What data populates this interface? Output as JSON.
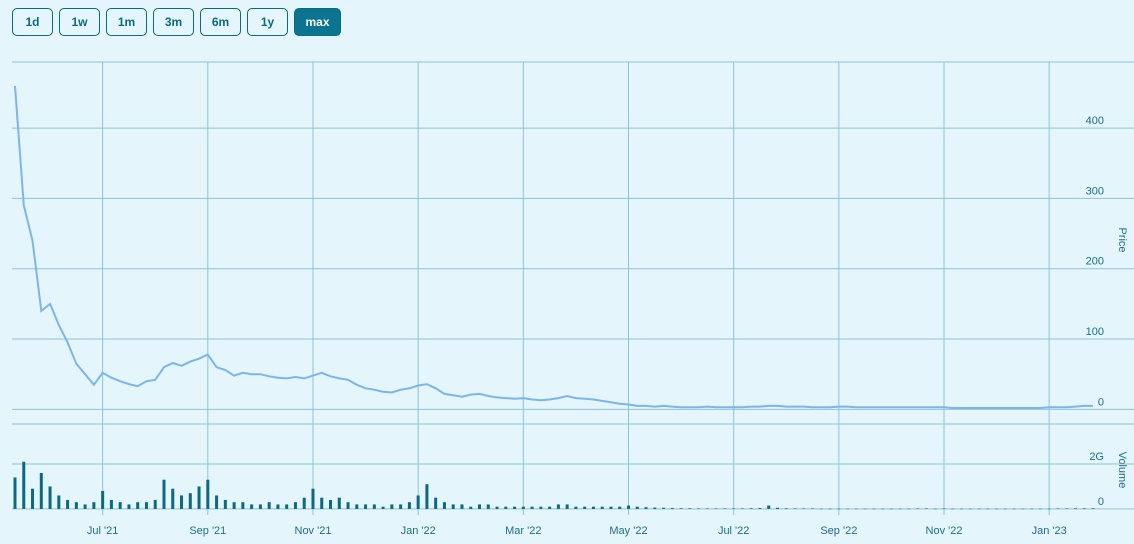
{
  "range_buttons": [
    "1d",
    "1w",
    "1m",
    "3m",
    "6m",
    "1y",
    "max"
  ],
  "selected_button": 6,
  "chart_data": [
    {
      "type": "line",
      "ylabel": "Price",
      "color": "#7cb5ec",
      "ylim": [
        -8,
        494
      ],
      "yticks": [
        0,
        100,
        200,
        300,
        400
      ],
      "grid": true,
      "values": [
        460,
        290,
        240,
        140,
        150,
        120,
        95,
        65,
        50,
        35,
        52,
        45,
        40,
        36,
        33,
        40,
        42,
        60,
        66,
        62,
        68,
        72,
        78,
        60,
        56,
        48,
        52,
        50,
        50,
        47,
        45,
        44,
        46,
        44,
        48,
        52,
        47,
        44,
        42,
        35,
        30,
        28,
        25,
        24,
        28,
        30,
        34,
        36,
        30,
        22,
        20,
        18,
        21,
        22,
        19,
        17,
        16,
        15,
        16,
        14,
        13,
        14,
        16,
        19,
        16,
        15,
        14,
        12,
        10,
        8,
        7,
        5,
        5,
        4,
        5,
        4,
        3,
        3,
        3,
        4,
        3,
        3,
        3,
        3,
        4,
        4,
        5,
        5,
        4,
        4,
        4,
        3,
        3,
        3,
        4,
        4,
        3,
        3,
        3,
        3,
        3,
        3,
        3,
        3,
        3,
        3,
        3,
        2,
        2,
        2,
        2,
        2,
        2,
        2,
        2,
        2,
        2,
        2,
        3,
        3,
        3,
        4,
        5,
        5
      ]
    },
    {
      "type": "bar",
      "ylabel": "Volume",
      "color": "#0b6a80",
      "ylim": [
        -270000000,
        3780000000
      ],
      "yticks": [
        0,
        {
          "value": 2000000000,
          "label": "2G"
        }
      ],
      "grid": true,
      "categories": [
        null,
        null,
        null,
        null,
        null,
        null,
        null,
        null,
        null,
        null,
        "Jul '21",
        null,
        null,
        null,
        null,
        null,
        null,
        null,
        null,
        null,
        null,
        null,
        "Sep '21",
        null,
        null,
        null,
        null,
        null,
        null,
        null,
        null,
        null,
        null,
        null,
        "Nov '21",
        null,
        null,
        null,
        null,
        null,
        null,
        null,
        null,
        null,
        null,
        null,
        "Jan '22",
        null,
        null,
        null,
        null,
        null,
        null,
        null,
        null,
        null,
        null,
        null,
        "Mar '22",
        null,
        null,
        null,
        null,
        null,
        null,
        null,
        null,
        null,
        null,
        null,
        "May '22",
        null,
        null,
        null,
        null,
        null,
        null,
        null,
        null,
        null,
        null,
        null,
        "Jul '22",
        null,
        null,
        null,
        null,
        null,
        null,
        null,
        null,
        null,
        null,
        null,
        "Sep '22",
        null,
        null,
        null,
        null,
        null,
        null,
        null,
        null,
        null,
        null,
        null,
        "Nov '22",
        null,
        null,
        null,
        null,
        null,
        null,
        null,
        null,
        null,
        null,
        null,
        "Jan '23",
        null,
        null,
        null,
        null,
        null
      ],
      "values": [
        1400000000.0,
        2100000000.0,
        900000000.0,
        1600000000.0,
        1000000000.0,
        600000000.0,
        400000000.0,
        300000000.0,
        200000000.0,
        300000000.0,
        800000000.0,
        400000000.0,
        300000000.0,
        200000000.0,
        300000000.0,
        300000000.0,
        400000000.0,
        1300000000.0,
        900000000.0,
        600000000.0,
        700000000.0,
        1000000000.0,
        1300000000.0,
        600000000.0,
        400000000.0,
        300000000.0,
        300000000.0,
        200000000.0,
        200000000.0,
        300000000.0,
        200000000.0,
        200000000.0,
        300000000.0,
        500000000.0,
        900000000.0,
        500000000.0,
        400000000.0,
        500000000.0,
        300000000.0,
        200000000.0,
        200000000.0,
        200000000.0,
        100000000.0,
        200000000.0,
        200000000.0,
        300000000.0,
        600000000.0,
        1100000000.0,
        500000000.0,
        300000000.0,
        200000000.0,
        200000000.0,
        100000000.0,
        200000000.0,
        200000000.0,
        100000000.0,
        100000000.0,
        100000000.0,
        100000000.0,
        100000000.0,
        100000000.0,
        100000000.0,
        200000000.0,
        200000000.0,
        100000000.0,
        100000000.0,
        100000000.0,
        100000000.0,
        100000000.0,
        100000000.0,
        150000000.0,
        100000000.0,
        80000000.0,
        60000000.0,
        50000000.0,
        40000000.0,
        30000000.0,
        30000000.0,
        20000000.0,
        20000000.0,
        20000000.0,
        20000000.0,
        20000000.0,
        20000000.0,
        30000000.0,
        40000000.0,
        150000000.0,
        50000000.0,
        30000000.0,
        20000000.0,
        20000000.0,
        20000000.0,
        10000000.0,
        10000000.0,
        10000000.0,
        10000000.0,
        10000000.0,
        10000000.0,
        10000000.0,
        10000000.0,
        10000000.0,
        10000000.0,
        10000000.0,
        20000000.0,
        20000000.0,
        10000000.0,
        20000000.0,
        10000000.0,
        10000000.0,
        10000000.0,
        10000000.0,
        10000000.0,
        10000000.0,
        10000000.0,
        10000000.0,
        10000000.0,
        10000000.0,
        10000000.0,
        10000000.0,
        20000000.0,
        20000000.0,
        30000000.0,
        30000000.0,
        30000000.0
      ]
    }
  ]
}
